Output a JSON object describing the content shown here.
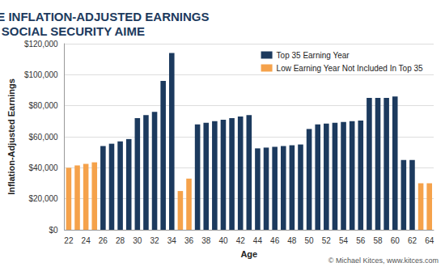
{
  "chart_data": {
    "type": "bar",
    "title": "HYPOTHETICAL LIFETIME INFLATION-ADJUSTED EARNINGS INCLUDED IN SOCIAL SECURITY AIME",
    "x_label": "Age",
    "y_label": "Inflation-Adjusted Earnings",
    "annotation": "© Michael Kitces, www.kitces.com",
    "categories": [
      "22",
      null,
      "24",
      null,
      "26",
      null,
      "28",
      null,
      "30",
      null,
      "32",
      null,
      "34",
      null,
      "36",
      null,
      "38",
      null,
      "40",
      null,
      "42",
      null,
      "44",
      null,
      "46",
      null,
      "48",
      null,
      "50",
      null,
      "52",
      null,
      "54",
      null,
      "56",
      null,
      "58",
      null,
      "60",
      null,
      "62",
      null,
      "64"
    ],
    "series": [
      {
        "name": "Top 35 Earning Year",
        "color": "#1c3a5e",
        "values": [
          null,
          null,
          null,
          null,
          54000,
          55500,
          57000,
          58500,
          72000,
          74000,
          76000,
          96000,
          114000,
          null,
          null,
          68000,
          69000,
          70000,
          71000,
          72000,
          73000,
          74000,
          52500,
          53000,
          53500,
          54000,
          54500,
          55000,
          65000,
          68000,
          68500,
          69000,
          69500,
          70000,
          70500,
          85000,
          85000,
          85000,
          86000,
          45000,
          45000,
          null,
          null
        ]
      },
      {
        "name": "Low Earning Year Not Included In Top 35",
        "color": "#f5a24b",
        "values": [
          40000,
          41500,
          42500,
          43500,
          null,
          null,
          null,
          null,
          null,
          null,
          null,
          null,
          null,
          25000,
          33000,
          null,
          null,
          null,
          null,
          null,
          null,
          null,
          null,
          null,
          null,
          null,
          null,
          null,
          null,
          null,
          null,
          null,
          null,
          null,
          null,
          null,
          null,
          null,
          null,
          null,
          null,
          30000,
          30000
        ]
      }
    ],
    "ylim": [
      0,
      120000
    ],
    "yticks": [
      {
        "value": 0,
        "label": "$0"
      },
      {
        "value": 20000,
        "label": "$20,000"
      },
      {
        "value": 40000,
        "label": "$40,000"
      },
      {
        "value": 60000,
        "label": "$60,000"
      },
      {
        "value": 80000,
        "label": "$80,000"
      },
      {
        "value": 100000,
        "label": "$100,000"
      },
      {
        "value": 120000,
        "label": "$120,000"
      }
    ],
    "grid": true,
    "legend": "upper right"
  }
}
